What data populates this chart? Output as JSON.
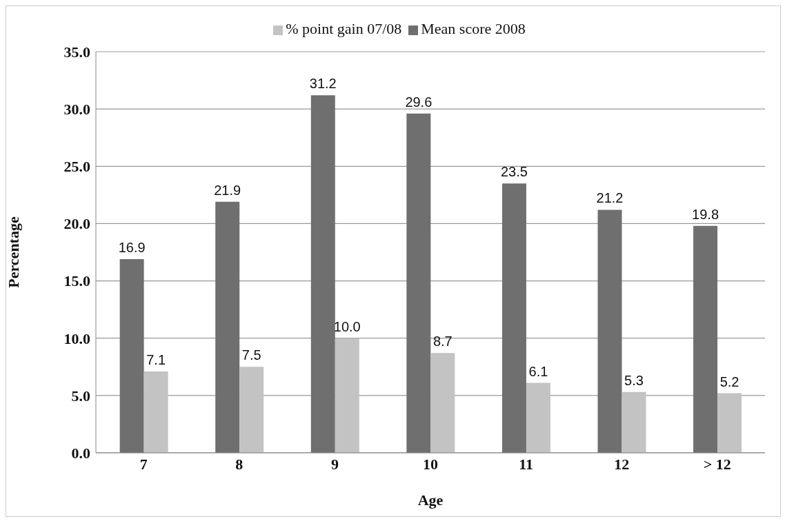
{
  "chart_data": {
    "type": "bar",
    "xlabel": "Age",
    "ylabel": "Percentage",
    "categories": [
      "7",
      "8",
      "9",
      "10",
      "11",
      "12",
      "> 12"
    ],
    "series": [
      {
        "name": "Mean score 2008",
        "color": "#6f6f6f",
        "values": [
          16.9,
          21.9,
          31.2,
          29.6,
          23.5,
          21.2,
          19.8
        ],
        "value_labels": [
          "16.9",
          "21.9",
          "31.2",
          "29.6",
          "23.5",
          "21.2",
          "19.8"
        ]
      },
      {
        "name": "% point gain 07/08",
        "color": "#c3c3c3",
        "values": [
          7.1,
          7.5,
          10.0,
          8.7,
          6.1,
          5.3,
          5.2
        ],
        "value_labels": [
          "7.1",
          "7.5",
          "10.0",
          "8.7",
          "6.1",
          "5.3",
          "5.2"
        ]
      }
    ],
    "ylim": [
      0,
      35
    ],
    "yticks": [
      {
        "value": 0,
        "label": "0.0"
      },
      {
        "value": 5,
        "label": "5.0"
      },
      {
        "value": 10,
        "label": "10.0"
      },
      {
        "value": 15,
        "label": "15.0"
      },
      {
        "value": 20,
        "label": "20.0"
      },
      {
        "value": 25,
        "label": "25.0"
      },
      {
        "value": 30,
        "label": "30.0"
      },
      {
        "value": 35,
        "label": "35.0"
      }
    ],
    "grid": "y",
    "legend": "top"
  }
}
